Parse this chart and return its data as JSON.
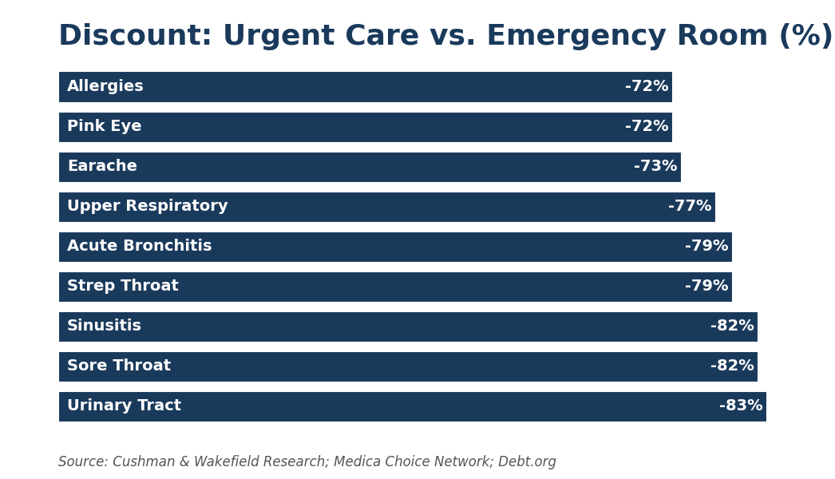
{
  "title": "Discount: Urgent Care vs. Emergency Room (%)",
  "categories": [
    "Allergies",
    "Pink Eye",
    "Earache",
    "Upper Respiratory",
    "Acute Bronchitis",
    "Strep Throat",
    "Sinusitis",
    "Sore Throat",
    "Urinary Tract"
  ],
  "values": [
    72,
    72,
    73,
    77,
    79,
    79,
    82,
    82,
    83
  ],
  "labels": [
    "-72%",
    "-72%",
    "-73%",
    "-77%",
    "-79%",
    "-79%",
    "-82%",
    "-82%",
    "-83%"
  ],
  "bar_color": "#1a3a5c",
  "label_color": "#ffffff",
  "title_color": "#1a3a5c",
  "source_text": "Source: Cushman & Wakefield Research; Medica Choice Network; Debt.org",
  "background_color": "#ffffff",
  "xlim_max": 88,
  "title_fontsize": 26,
  "bar_label_fontsize": 14,
  "category_fontsize": 14,
  "source_fontsize": 12
}
